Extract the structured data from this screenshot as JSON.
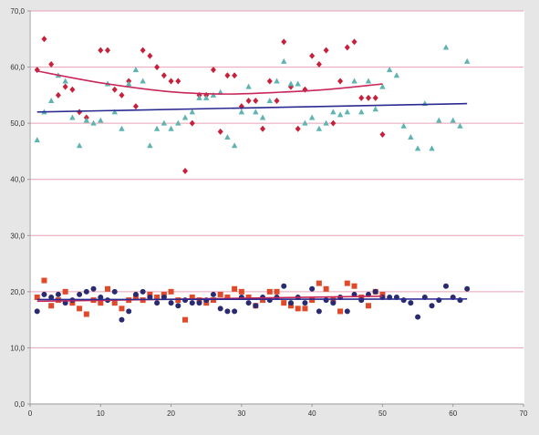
{
  "chart_data": {
    "type": "scatter",
    "xlim": [
      0,
      70
    ],
    "ylim": [
      0,
      70
    ],
    "x_ticks": [
      0,
      10,
      20,
      30,
      40,
      50,
      60,
      70
    ],
    "x_tick_labels": [
      "0",
      "10",
      "20",
      "30",
      "40",
      "50",
      "60",
      "70"
    ],
    "y_ticks": [
      0,
      10,
      20,
      30,
      40,
      50,
      60,
      70
    ],
    "y_tick_labels": [
      "0,0",
      "10,0",
      "20,0",
      "30,0",
      "40,0",
      "50,0",
      "60,0",
      "70,0"
    ],
    "grid": "horizontal",
    "colors": {
      "gridline": "#e8a0b4",
      "red_diamond": "#c8203a",
      "teal_triangle": "#5fb3b0",
      "red_square": "#e04a2a",
      "navy_circle": "#2a2a70",
      "trend_red": "#c8285a",
      "trend_blue": "#2a2a90",
      "plot_bg": "#ffffff",
      "page_bg": "#e6e6e6"
    },
    "series": [
      {
        "marker": "diamond",
        "color": "#c8203a",
        "points": [
          [
            1,
            59.5
          ],
          [
            2,
            65
          ],
          [
            3,
            60.5
          ],
          [
            4,
            55
          ],
          [
            5,
            56.5
          ],
          [
            6,
            56
          ],
          [
            7,
            52
          ],
          [
            8,
            51
          ],
          [
            10,
            63
          ],
          [
            11,
            63
          ],
          [
            12,
            56
          ],
          [
            13,
            55
          ],
          [
            14,
            57.5
          ],
          [
            15,
            53
          ],
          [
            16,
            63
          ],
          [
            17,
            62
          ],
          [
            18,
            60
          ],
          [
            19,
            58.5
          ],
          [
            20,
            57.5
          ],
          [
            21,
            57.5
          ],
          [
            22,
            41.5
          ],
          [
            23,
            50
          ],
          [
            24,
            55
          ],
          [
            25,
            55
          ],
          [
            26,
            59.5
          ],
          [
            27,
            48.5
          ],
          [
            28,
            58.5
          ],
          [
            29,
            58.5
          ],
          [
            30,
            53
          ],
          [
            31,
            54
          ],
          [
            32,
            54
          ],
          [
            33,
            49
          ],
          [
            34,
            57.5
          ],
          [
            35,
            54
          ],
          [
            36,
            64.5
          ],
          [
            37,
            56.5
          ],
          [
            38,
            49
          ],
          [
            39,
            56
          ],
          [
            40,
            62
          ],
          [
            41,
            60.5
          ],
          [
            42,
            63
          ],
          [
            43,
            50
          ],
          [
            44,
            57.5
          ],
          [
            45,
            63.5
          ],
          [
            46,
            64.5
          ],
          [
            47,
            54.5
          ],
          [
            48,
            54.5
          ],
          [
            49,
            54.5
          ],
          [
            50,
            48
          ]
        ]
      },
      {
        "marker": "triangle",
        "color": "#5fb3b0",
        "points": [
          [
            1,
            47
          ],
          [
            2,
            52
          ],
          [
            3,
            54
          ],
          [
            4,
            58.5
          ],
          [
            5,
            57.5
          ],
          [
            6,
            51
          ],
          [
            7,
            46
          ],
          [
            8,
            50.5
          ],
          [
            9,
            50
          ],
          [
            10,
            50.5
          ],
          [
            11,
            57
          ],
          [
            12,
            52
          ],
          [
            13,
            49
          ],
          [
            14,
            57
          ],
          [
            15,
            59.5
          ],
          [
            16,
            57.5
          ],
          [
            17,
            46
          ],
          [
            18,
            49
          ],
          [
            19,
            50
          ],
          [
            20,
            49
          ],
          [
            21,
            50
          ],
          [
            22,
            51
          ],
          [
            23,
            52
          ],
          [
            24,
            54.5
          ],
          [
            25,
            54.5
          ],
          [
            26,
            55
          ],
          [
            27,
            55.5
          ],
          [
            28,
            47.5
          ],
          [
            29,
            46
          ],
          [
            30,
            52
          ],
          [
            31,
            56.5
          ],
          [
            32,
            52
          ],
          [
            33,
            51
          ],
          [
            34,
            54
          ],
          [
            35,
            57.5
          ],
          [
            36,
            61
          ],
          [
            37,
            57
          ],
          [
            38,
            57
          ],
          [
            39,
            50
          ],
          [
            40,
            51
          ],
          [
            41,
            49
          ],
          [
            42,
            50
          ],
          [
            43,
            52
          ],
          [
            44,
            51.5
          ],
          [
            45,
            52
          ],
          [
            46,
            57.5
          ],
          [
            47,
            52
          ],
          [
            48,
            57.5
          ],
          [
            49,
            52.5
          ],
          [
            50,
            56.5
          ],
          [
            51,
            59.5
          ],
          [
            52,
            58.5
          ],
          [
            53,
            49.5
          ],
          [
            54,
            47.5
          ],
          [
            55,
            45.5
          ],
          [
            56,
            53.5
          ],
          [
            57,
            45.5
          ],
          [
            58,
            50.5
          ],
          [
            59,
            63.5
          ],
          [
            60,
            50.5
          ],
          [
            61,
            49.5
          ],
          [
            62,
            61
          ]
        ]
      },
      {
        "marker": "square",
        "color": "#e04a2a",
        "points": [
          [
            1,
            19
          ],
          [
            2,
            22
          ],
          [
            3,
            17.5
          ],
          [
            4,
            18.5
          ],
          [
            5,
            20
          ],
          [
            6,
            18
          ],
          [
            7,
            17
          ],
          [
            8,
            16
          ],
          [
            9,
            18.5
          ],
          [
            10,
            18
          ],
          [
            11,
            20.5
          ],
          [
            12,
            18
          ],
          [
            13,
            17
          ],
          [
            14,
            18.5
          ],
          [
            15,
            19
          ],
          [
            16,
            18.5
          ],
          [
            17,
            19.5
          ],
          [
            18,
            19
          ],
          [
            19,
            19.5
          ],
          [
            20,
            20
          ],
          [
            21,
            18.5
          ],
          [
            22,
            15
          ],
          [
            23,
            19
          ],
          [
            24,
            18.5
          ],
          [
            25,
            18
          ],
          [
            26,
            18.5
          ],
          [
            27,
            19.5
          ],
          [
            28,
            19
          ],
          [
            29,
            20.5
          ],
          [
            30,
            20
          ],
          [
            31,
            19
          ],
          [
            32,
            17.5
          ],
          [
            33,
            18.5
          ],
          [
            34,
            20
          ],
          [
            35,
            20
          ],
          [
            36,
            18
          ],
          [
            37,
            17.5
          ],
          [
            38,
            17
          ],
          [
            39,
            17
          ],
          [
            40,
            18.5
          ],
          [
            41,
            21.5
          ],
          [
            42,
            20.5
          ],
          [
            43,
            18.5
          ],
          [
            44,
            16.5
          ],
          [
            45,
            21.5
          ],
          [
            46,
            21
          ],
          [
            47,
            19
          ],
          [
            48,
            17.5
          ],
          [
            49,
            20
          ],
          [
            50,
            19.5
          ]
        ]
      },
      {
        "marker": "circle",
        "color": "#2a2a70",
        "points": [
          [
            1,
            16.5
          ],
          [
            2,
            19.5
          ],
          [
            3,
            19
          ],
          [
            4,
            19.5
          ],
          [
            5,
            18
          ],
          [
            6,
            18.5
          ],
          [
            7,
            19.5
          ],
          [
            8,
            20
          ],
          [
            9,
            20.5
          ],
          [
            10,
            19
          ],
          [
            11,
            18.5
          ],
          [
            12,
            20
          ],
          [
            13,
            15
          ],
          [
            14,
            16.5
          ],
          [
            15,
            19.5
          ],
          [
            16,
            20
          ],
          [
            17,
            19
          ],
          [
            18,
            18
          ],
          [
            19,
            19
          ],
          [
            20,
            18
          ],
          [
            21,
            17.5
          ],
          [
            22,
            18.5
          ],
          [
            23,
            18
          ],
          [
            24,
            18
          ],
          [
            25,
            18.5
          ],
          [
            26,
            19.5
          ],
          [
            27,
            17
          ],
          [
            28,
            16.5
          ],
          [
            29,
            16.5
          ],
          [
            30,
            19
          ],
          [
            31,
            18
          ],
          [
            32,
            17.5
          ],
          [
            33,
            19
          ],
          [
            34,
            18.5
          ],
          [
            35,
            19
          ],
          [
            36,
            21
          ],
          [
            37,
            18
          ],
          [
            38,
            19
          ],
          [
            39,
            18
          ],
          [
            40,
            20.5
          ],
          [
            41,
            16.5
          ],
          [
            42,
            18.5
          ],
          [
            43,
            18
          ],
          [
            44,
            19
          ],
          [
            45,
            16.5
          ],
          [
            46,
            19.5
          ],
          [
            47,
            18.5
          ],
          [
            48,
            19.5
          ],
          [
            49,
            20
          ],
          [
            50,
            19
          ],
          [
            51,
            19
          ],
          [
            52,
            19
          ],
          [
            53,
            18.5
          ],
          [
            54,
            18
          ],
          [
            55,
            15.5
          ],
          [
            56,
            19
          ],
          [
            57,
            17.5
          ],
          [
            58,
            18.5
          ],
          [
            59,
            21
          ],
          [
            60,
            19
          ],
          [
            61,
            18.5
          ],
          [
            62,
            20.5
          ]
        ]
      }
    ],
    "trendlines": [
      {
        "color": "#c8285a",
        "points": [
          [
            1,
            59.3
          ],
          [
            10,
            57.2
          ],
          [
            20,
            55.6
          ],
          [
            28,
            55.2
          ],
          [
            35,
            55.5
          ],
          [
            42,
            56
          ],
          [
            50,
            57
          ]
        ]
      },
      {
        "color": "#2a2a90",
        "points": [
          [
            1,
            52
          ],
          [
            62,
            53.5
          ]
        ]
      },
      {
        "color": "#c8285a",
        "points": [
          [
            1,
            18.3
          ],
          [
            50,
            19.2
          ]
        ]
      },
      {
        "color": "#2a2a90",
        "points": [
          [
            1,
            18.6
          ],
          [
            62,
            18.7
          ]
        ]
      }
    ]
  }
}
